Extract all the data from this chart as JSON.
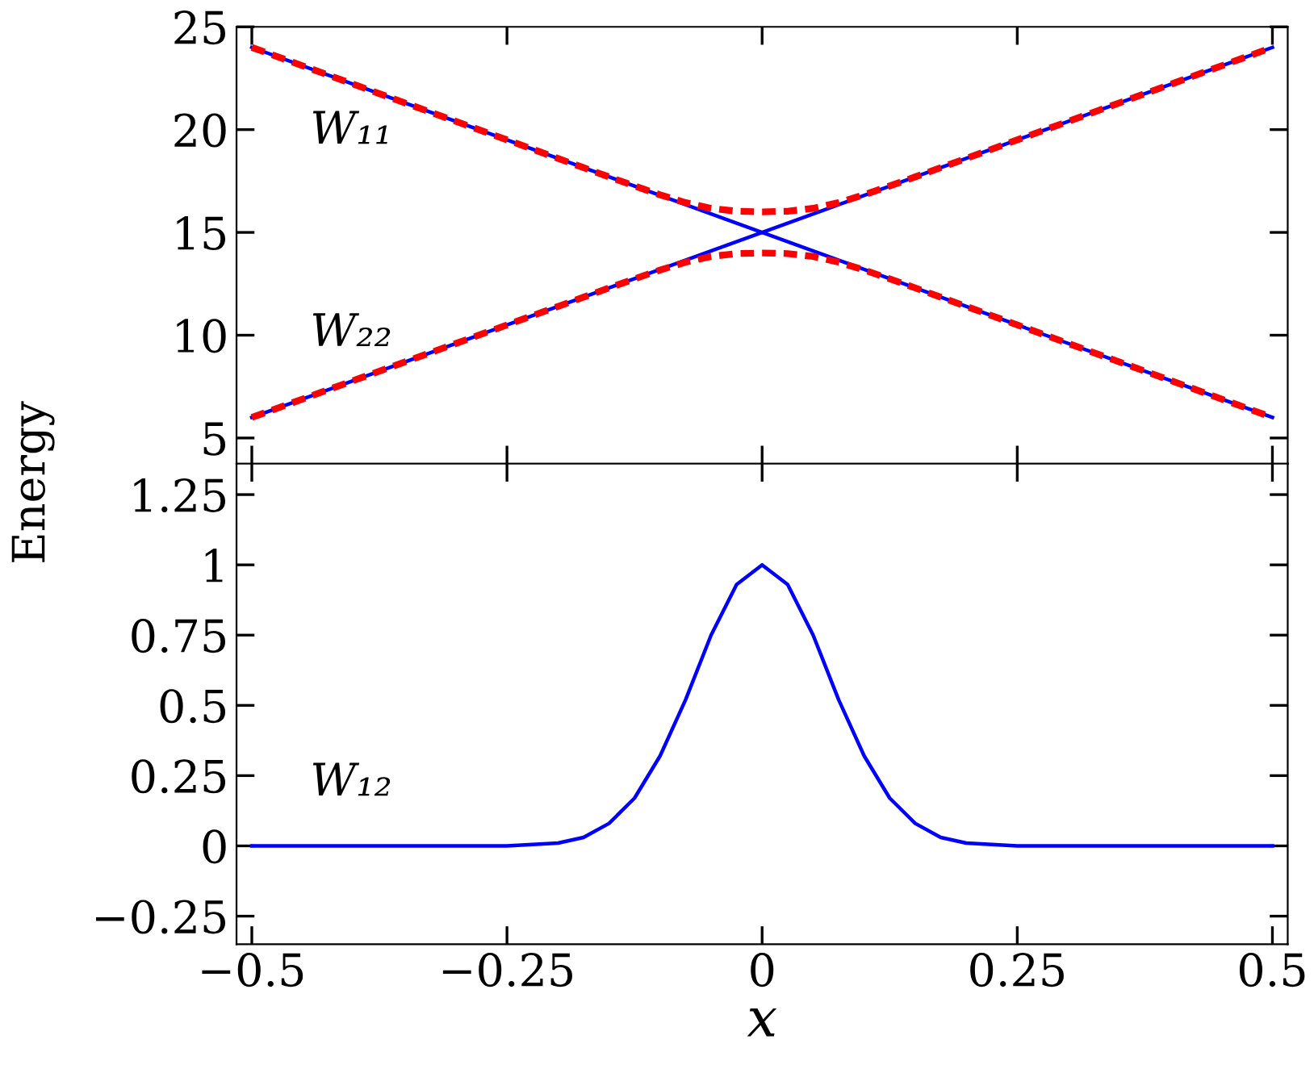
{
  "chart_data": [
    {
      "type": "line",
      "ylabel": "Energy",
      "xlim": [
        -0.515,
        0.515
      ],
      "ylim": [
        3.75,
        25
      ],
      "xticks": [
        -0.5,
        -0.25,
        0,
        0.25,
        0.5
      ],
      "yticks": [
        5,
        10,
        15,
        20,
        25
      ],
      "tick_labels": "y",
      "grid": false,
      "legend": false,
      "series": [
        {
          "name": "W₁₁",
          "color": "#0000ff",
          "line_style": "solid",
          "x": [
            -0.5,
            0.5
          ],
          "values": [
            24,
            6
          ]
        },
        {
          "name": "W₂₂",
          "color": "#0000ff",
          "line_style": "solid",
          "x": [
            -0.5,
            0.5
          ],
          "values": [
            6,
            24
          ]
        },
        {
          "color": "#ff0000",
          "line_style": "dashed",
          "x": [
            -0.5,
            -0.2,
            -0.15,
            -0.125,
            -0.1,
            -0.075,
            -0.05,
            -0.025,
            0,
            0.025,
            0.05,
            0.075,
            0.1,
            0.125,
            0.15,
            0.2,
            0.5
          ],
          "values": [
            24,
            18.6,
            17.7,
            17.26,
            16.83,
            16.45,
            16.17,
            16.03,
            16,
            16.03,
            16.17,
            16.45,
            16.83,
            17.26,
            17.7,
            18.6,
            24
          ]
        },
        {
          "color": "#ff0000",
          "line_style": "dashed",
          "x": [
            -0.5,
            -0.2,
            -0.15,
            -0.125,
            -0.1,
            -0.075,
            -0.05,
            -0.025,
            0,
            0.025,
            0.05,
            0.075,
            0.1,
            0.125,
            0.15,
            0.2,
            0.5
          ],
          "values": [
            6,
            11.4,
            12.3,
            12.74,
            13.17,
            13.55,
            13.83,
            13.97,
            14,
            13.97,
            13.83,
            13.55,
            13.17,
            12.74,
            12.3,
            11.4,
            6
          ]
        }
      ]
    },
    {
      "type": "line",
      "xlabel": "x",
      "xlim": [
        -0.515,
        0.515
      ],
      "ylim": [
        -0.35,
        1.36
      ],
      "xticks": [
        -0.5,
        -0.25,
        0,
        0.25,
        0.5
      ],
      "yticks": [
        -0.25,
        0,
        0.25,
        0.5,
        0.75,
        1,
        1.25
      ],
      "grid": false,
      "legend": false,
      "series": [
        {
          "name": "W₁₂",
          "color": "#0000ff",
          "line_style": "solid",
          "x": [
            -0.5,
            -0.25,
            -0.2,
            -0.175,
            -0.15,
            -0.125,
            -0.1,
            -0.075,
            -0.05,
            -0.025,
            0,
            0.025,
            0.05,
            0.075,
            0.1,
            0.125,
            0.15,
            0.175,
            0.2,
            0.25,
            0.5
          ],
          "values": [
            0,
            0,
            0.01,
            0.03,
            0.08,
            0.17,
            0.32,
            0.52,
            0.75,
            0.93,
            1,
            0.93,
            0.75,
            0.52,
            0.32,
            0.17,
            0.08,
            0.03,
            0.01,
            0,
            0
          ]
        }
      ]
    }
  ]
}
